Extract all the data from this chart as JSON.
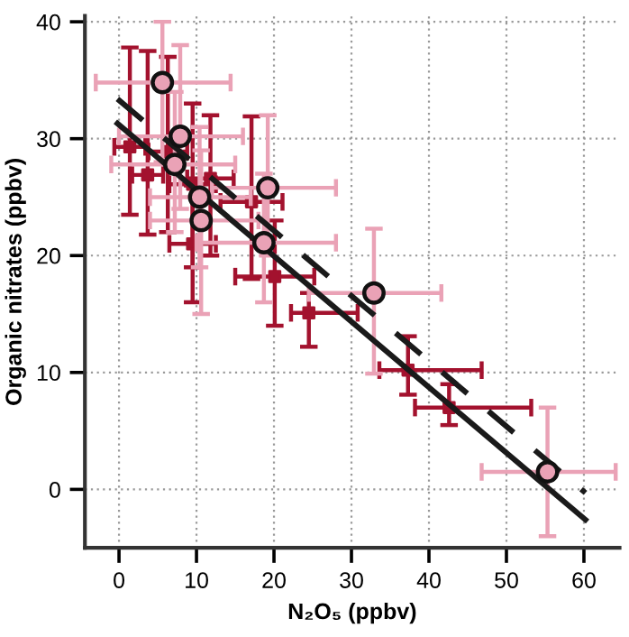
{
  "chart_data": {
    "type": "scatter",
    "xlabel": "N₂O₅ (ppbv)",
    "ylabel": "Organic nitrates (ppbv)",
    "xlim": [
      -4.4,
      64.6
    ],
    "ylim": [
      -5,
      40.5
    ],
    "xticks": [
      0,
      10,
      20,
      30,
      40,
      50,
      60
    ],
    "yticks": [
      0,
      10,
      20,
      30,
      40
    ],
    "grid": true,
    "series": [
      {
        "marker": "square",
        "color": "#a3122e",
        "x": [
          1.4,
          3.7,
          6.3,
          9.5,
          11.8,
          17.1,
          9.5,
          20.1,
          24.5,
          37.3,
          42.6
        ],
        "values": [
          29.3,
          26.9,
          28.9,
          26.1,
          26.6,
          24.6,
          21.0,
          18.2,
          15.1,
          10.2,
          7.0
        ],
        "errors": [
          [
            23.5,
            37.8
          ],
          [
            21.8,
            37.5
          ],
          [
            22.0,
            37.0
          ],
          [
            19.0,
            33.0
          ],
          [
            20.0,
            32.0
          ],
          [
            18.0,
            31.9
          ],
          [
            16.0,
            26.0
          ],
          [
            14.0,
            23.0
          ],
          [
            12.2,
            16.8
          ],
          [
            8.1,
            13.1
          ],
          [
            5.5,
            9.0
          ]
        ],
        "xerrors": [
          2,
          2,
          2.5,
          3,
          3,
          4,
          3,
          [
            15.0,
            25.2
          ],
          [
            22.2,
            30.8
          ],
          [
            33.6,
            46.8
          ],
          [
            38.2,
            53.2
          ]
        ]
      },
      {
        "marker": "circle",
        "color": "#eaa2b6",
        "x": [
          5.6,
          7.9,
          7.2,
          10.4,
          10.6,
          19.2,
          18.7,
          32.9,
          55.3
        ],
        "values": [
          34.8,
          30.2,
          27.8,
          25.0,
          23.0,
          25.8,
          21.1,
          16.8,
          1.5
        ],
        "errors": [
          [
            28.0,
            40.0
          ],
          [
            24.0,
            38.0
          ],
          [
            22.0,
            34.0
          ],
          [
            19.0,
            31.0
          ],
          [
            15.0,
            29.0
          ],
          [
            20.0,
            32.0
          ],
          [
            16.0,
            27.0
          ],
          [
            9.9,
            22.3
          ],
          [
            -4.0,
            7.0
          ]
        ],
        "xerrors": [
          [
            -3.0,
            14.4
          ],
          [
            0.0,
            16.0
          ],
          [
            -1.0,
            15.0
          ],
          [
            4.0,
            17.0
          ],
          [
            4.0,
            18.0
          ],
          [
            12.0,
            28.0
          ],
          [
            10.0,
            28.0
          ],
          [
            24.5,
            41.6
          ],
          [
            46.8,
            64.1
          ]
        ]
      },
      {
        "type": "line",
        "line_style": "solid",
        "color": "#1a1a1a",
        "x": [
          -0.2,
          60.2
        ],
        "values": [
          31.3,
          -2.6
        ]
      },
      {
        "type": "line",
        "line_style": "dashed",
        "color": "#1a1a1a",
        "x": [
          -0.2,
          60.2
        ],
        "values": [
          33.4,
          -0.3
        ]
      }
    ]
  }
}
